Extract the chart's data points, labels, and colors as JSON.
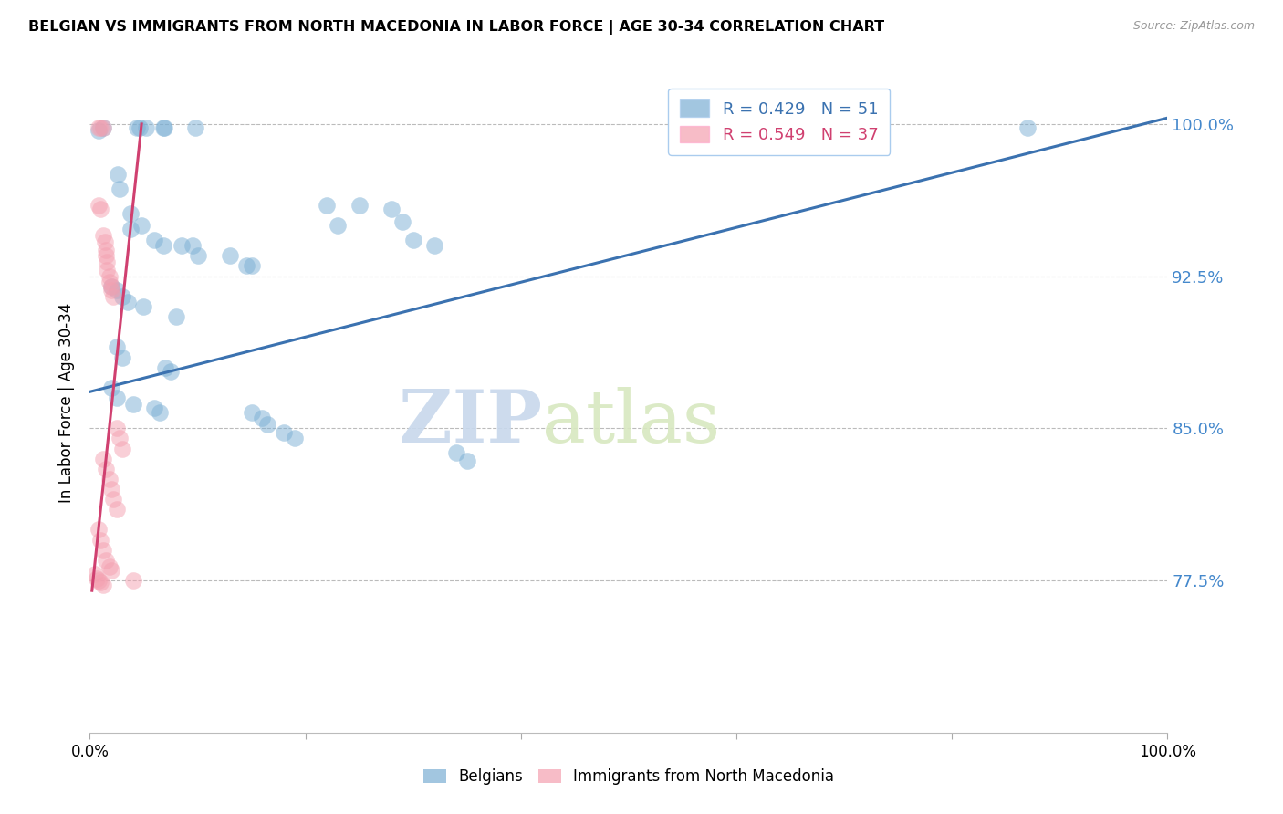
{
  "title": "BELGIAN VS IMMIGRANTS FROM NORTH MACEDONIA IN LABOR FORCE | AGE 30-34 CORRELATION CHART",
  "source": "Source: ZipAtlas.com",
  "ylabel": "In Labor Force | Age 30-34",
  "watermark_zip": "ZIP",
  "watermark_atlas": "atlas",
  "xlim": [
    0.0,
    1.0
  ],
  "ylim": [
    0.7,
    1.025
  ],
  "yticks": [
    0.775,
    0.85,
    0.925,
    1.0
  ],
  "ytick_labels": [
    "77.5%",
    "85.0%",
    "92.5%",
    "100.0%"
  ],
  "xticks": [
    0.0,
    0.2,
    0.4,
    0.6,
    0.8,
    1.0
  ],
  "xtick_labels": [
    "0.0%",
    "",
    "",
    "",
    "",
    "100.0%"
  ],
  "blue_R": 0.429,
  "blue_N": 51,
  "pink_R": 0.549,
  "pink_N": 37,
  "blue_color": "#7BAFD4",
  "pink_color": "#F4A0B0",
  "line_blue": "#3B72B0",
  "line_pink": "#D04070",
  "legend_text_blue": "#3B72B0",
  "legend_text_pink": "#D04070",
  "blue_points": [
    [
      0.008,
      0.997
    ],
    [
      0.012,
      0.998
    ],
    [
      0.044,
      0.998
    ],
    [
      0.046,
      0.998
    ],
    [
      0.052,
      0.998
    ],
    [
      0.068,
      0.998
    ],
    [
      0.069,
      0.998
    ],
    [
      0.098,
      0.998
    ],
    [
      0.026,
      0.975
    ],
    [
      0.028,
      0.968
    ],
    [
      0.038,
      0.956
    ],
    [
      0.038,
      0.948
    ],
    [
      0.048,
      0.95
    ],
    [
      0.06,
      0.943
    ],
    [
      0.068,
      0.94
    ],
    [
      0.085,
      0.94
    ],
    [
      0.095,
      0.94
    ],
    [
      0.1,
      0.935
    ],
    [
      0.13,
      0.935
    ],
    [
      0.145,
      0.93
    ],
    [
      0.15,
      0.93
    ],
    [
      0.22,
      0.96
    ],
    [
      0.23,
      0.95
    ],
    [
      0.25,
      0.96
    ],
    [
      0.28,
      0.958
    ],
    [
      0.29,
      0.952
    ],
    [
      0.3,
      0.943
    ],
    [
      0.32,
      0.94
    ],
    [
      0.02,
      0.92
    ],
    [
      0.025,
      0.918
    ],
    [
      0.03,
      0.915
    ],
    [
      0.035,
      0.912
    ],
    [
      0.05,
      0.91
    ],
    [
      0.08,
      0.905
    ],
    [
      0.025,
      0.89
    ],
    [
      0.03,
      0.885
    ],
    [
      0.07,
      0.88
    ],
    [
      0.075,
      0.878
    ],
    [
      0.02,
      0.87
    ],
    [
      0.025,
      0.865
    ],
    [
      0.04,
      0.862
    ],
    [
      0.06,
      0.86
    ],
    [
      0.065,
      0.858
    ],
    [
      0.15,
      0.858
    ],
    [
      0.16,
      0.855
    ],
    [
      0.165,
      0.852
    ],
    [
      0.18,
      0.848
    ],
    [
      0.19,
      0.845
    ],
    [
      0.34,
      0.838
    ],
    [
      0.35,
      0.834
    ],
    [
      0.87,
      0.998
    ]
  ],
  "pink_points": [
    [
      0.008,
      0.998
    ],
    [
      0.01,
      0.998
    ],
    [
      0.012,
      0.998
    ],
    [
      0.008,
      0.96
    ],
    [
      0.01,
      0.958
    ],
    [
      0.012,
      0.945
    ],
    [
      0.014,
      0.942
    ],
    [
      0.015,
      0.938
    ],
    [
      0.015,
      0.935
    ],
    [
      0.016,
      0.932
    ],
    [
      0.016,
      0.928
    ],
    [
      0.018,
      0.925
    ],
    [
      0.018,
      0.922
    ],
    [
      0.02,
      0.92
    ],
    [
      0.02,
      0.918
    ],
    [
      0.022,
      0.915
    ],
    [
      0.025,
      0.85
    ],
    [
      0.028,
      0.845
    ],
    [
      0.03,
      0.84
    ],
    [
      0.012,
      0.835
    ],
    [
      0.015,
      0.83
    ],
    [
      0.018,
      0.825
    ],
    [
      0.02,
      0.82
    ],
    [
      0.022,
      0.815
    ],
    [
      0.025,
      0.81
    ],
    [
      0.008,
      0.8
    ],
    [
      0.01,
      0.795
    ],
    [
      0.012,
      0.79
    ],
    [
      0.015,
      0.785
    ],
    [
      0.018,
      0.782
    ],
    [
      0.02,
      0.78
    ],
    [
      0.005,
      0.778
    ],
    [
      0.006,
      0.776
    ],
    [
      0.008,
      0.775
    ],
    [
      0.01,
      0.774
    ],
    [
      0.012,
      0.773
    ],
    [
      0.04,
      0.775
    ]
  ],
  "blue_line_x": [
    0.0,
    1.0
  ],
  "blue_line_y": [
    0.868,
    1.003
  ],
  "pink_line_x": [
    0.002,
    0.048
  ],
  "pink_line_y": [
    0.77,
    1.0
  ]
}
